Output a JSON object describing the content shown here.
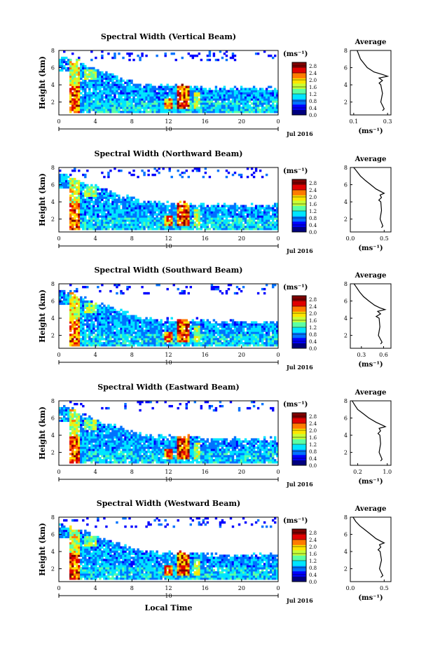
{
  "figure": {
    "xlabel": "Local Time",
    "date_label": "Jul 2016",
    "day_label": "10",
    "height_label": "Height (km)",
    "unit_label": "(ms⁻¹)",
    "avg_title": "Average",
    "avg_xlabel": "(ms⁻¹)",
    "colormap": [
      "#00007f",
      "#0000ff",
      "#0072ff",
      "#00e5ff",
      "#5bffa4",
      "#c8ff37",
      "#ffe500",
      "#ff7a00",
      "#e00000",
      "#7f0000"
    ]
  },
  "chart_data": [
    {
      "type": "heatmap",
      "title": "Spectral Width (Vertical Beam)",
      "x_ticks": [
        "0",
        "4",
        "8",
        "12",
        "16",
        "20",
        "0"
      ],
      "y_ticks": [
        "2",
        "4",
        "6",
        "8"
      ],
      "xlim": [
        0,
        24
      ],
      "ylim": [
        0.5,
        8
      ],
      "colorbar_ticks": [
        "0.0",
        "0.4",
        "0.8",
        "1.2",
        "1.6",
        "2.0",
        "2.4",
        "2.8"
      ],
      "colorbar_range": [
        0,
        3.0
      ],
      "profile": {
        "type": "line",
        "x_ticks": [
          "0.1",
          "0.3"
        ],
        "xlim": [
          0.08,
          0.32
        ],
        "y_ticks": [
          "2",
          "4",
          "6",
          "8"
        ],
        "ylim": [
          0.5,
          8
        ],
        "x": [
          0.12,
          0.13,
          0.14,
          0.16,
          0.18,
          0.22,
          0.27,
          0.3,
          0.25,
          0.27,
          0.25,
          0.26,
          0.27,
          0.26,
          0.28,
          0.27
        ],
        "y": [
          8,
          7.5,
          7,
          6.5,
          6,
          5.5,
          5.2,
          5,
          4.8,
          4.5,
          4.2,
          4,
          3,
          2,
          1.2,
          1
        ]
      }
    },
    {
      "type": "heatmap",
      "title": "Spectral Width (Northward Beam)",
      "x_ticks": [
        "0",
        "4",
        "8",
        "12",
        "16",
        "20",
        "0"
      ],
      "y_ticks": [
        "2",
        "4",
        "6",
        "8"
      ],
      "xlim": [
        0,
        24
      ],
      "ylim": [
        0.5,
        8
      ],
      "colorbar_ticks": [
        "0.0",
        "0.4",
        "0.8",
        "1.2",
        "1.6",
        "2.0",
        "2.4",
        "2.8"
      ],
      "colorbar_range": [
        0,
        3.0
      ],
      "profile": {
        "type": "line",
        "x_ticks": [
          "0.0",
          "0.5"
        ],
        "xlim": [
          0,
          0.6
        ],
        "y_ticks": [
          "2",
          "4",
          "6",
          "8"
        ],
        "ylim": [
          0.5,
          8
        ],
        "x": [
          0.05,
          0.1,
          0.15,
          0.22,
          0.3,
          0.38,
          0.45,
          0.5,
          0.44,
          0.46,
          0.42,
          0.45,
          0.46,
          0.44,
          0.48,
          0.46
        ],
        "y": [
          8,
          7.5,
          7,
          6.5,
          6,
          5.5,
          5.2,
          5,
          4.8,
          4.5,
          4.2,
          4,
          3,
          2,
          1.2,
          1
        ]
      }
    },
    {
      "type": "heatmap",
      "title": "Spectral Width (Southward Beam)",
      "x_ticks": [
        "0",
        "4",
        "8",
        "12",
        "16",
        "20",
        "0"
      ],
      "y_ticks": [
        "2",
        "4",
        "6",
        "8"
      ],
      "xlim": [
        0,
        24
      ],
      "ylim": [
        0.5,
        8
      ],
      "colorbar_ticks": [
        "0.0",
        "0.4",
        "0.8",
        "1.2",
        "1.6",
        "2.0",
        "2.4",
        "2.8"
      ],
      "colorbar_range": [
        0,
        3.0
      ],
      "profile": {
        "type": "line",
        "x_ticks": [
          "0.3",
          "0.6"
        ],
        "xlim": [
          0.15,
          0.7
        ],
        "y_ticks": [
          "2",
          "4",
          "6",
          "8"
        ],
        "ylim": [
          0.5,
          8
        ],
        "x": [
          0.2,
          0.24,
          0.28,
          0.33,
          0.4,
          0.48,
          0.55,
          0.62,
          0.52,
          0.56,
          0.5,
          0.54,
          0.55,
          0.53,
          0.58,
          0.56
        ],
        "y": [
          8,
          7.5,
          7,
          6.5,
          6,
          5.5,
          5.2,
          5,
          4.8,
          4.5,
          4.2,
          4,
          3,
          2,
          1.2,
          1
        ]
      }
    },
    {
      "type": "heatmap",
      "title": "Spectral Width (Eastward Beam)",
      "x_ticks": [
        "0",
        "4",
        "8",
        "12",
        "16",
        "20",
        "0"
      ],
      "y_ticks": [
        "2",
        "4",
        "6",
        "8"
      ],
      "xlim": [
        0,
        24
      ],
      "ylim": [
        0.5,
        8
      ],
      "colorbar_ticks": [
        "0.0",
        "0.4",
        "0.8",
        "1.2",
        "1.6",
        "2.0",
        "2.4",
        "2.8"
      ],
      "colorbar_range": [
        0,
        3.0
      ],
      "profile": {
        "type": "line",
        "x_ticks": [
          "0.2",
          "1.0"
        ],
        "xlim": [
          0,
          1.1
        ],
        "y_ticks": [
          "2",
          "4",
          "6",
          "8"
        ],
        "ylim": [
          0.5,
          8
        ],
        "x": [
          0.05,
          0.12,
          0.2,
          0.35,
          0.5,
          0.7,
          0.85,
          0.95,
          0.78,
          0.82,
          0.75,
          0.8,
          0.82,
          0.78,
          0.86,
          0.82
        ],
        "y": [
          8,
          7.5,
          7,
          6.5,
          6,
          5.5,
          5.2,
          5,
          4.8,
          4.5,
          4.2,
          4,
          3,
          2,
          1.2,
          1
        ]
      }
    },
    {
      "type": "heatmap",
      "title": "Spectral Width (Westward Beam)",
      "x_ticks": [
        "0",
        "4",
        "8",
        "12",
        "16",
        "20",
        "0"
      ],
      "y_ticks": [
        "2",
        "4",
        "6",
        "8"
      ],
      "xlim": [
        0,
        24
      ],
      "ylim": [
        0.5,
        8
      ],
      "colorbar_ticks": [
        "0.0",
        "0.4",
        "0.8",
        "1.2",
        "1.6",
        "2.0",
        "2.4",
        "2.8"
      ],
      "colorbar_range": [
        0,
        3.0
      ],
      "profile": {
        "type": "line",
        "x_ticks": [
          "0.0",
          "0.5"
        ],
        "xlim": [
          0,
          0.6
        ],
        "y_ticks": [
          "2",
          "4",
          "6",
          "8"
        ],
        "ylim": [
          0.5,
          8
        ],
        "x": [
          0.04,
          0.08,
          0.14,
          0.22,
          0.3,
          0.38,
          0.45,
          0.5,
          0.43,
          0.45,
          0.41,
          0.44,
          0.46,
          0.43,
          0.48,
          0.45
        ],
        "y": [
          8,
          7.5,
          7,
          6.5,
          6,
          5.5,
          5.2,
          5,
          4.8,
          4.5,
          4.2,
          4,
          3,
          2,
          1.2,
          1
        ]
      }
    }
  ]
}
